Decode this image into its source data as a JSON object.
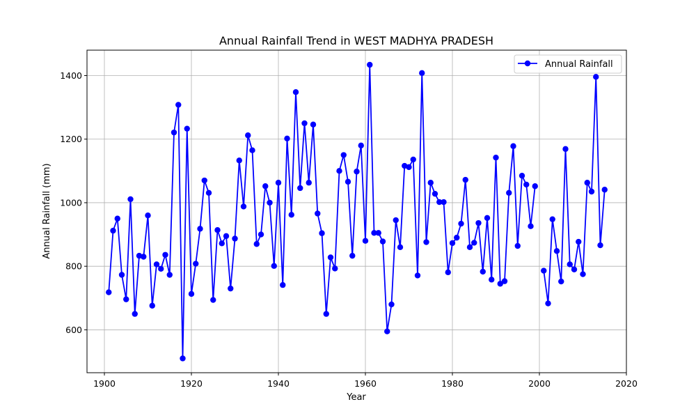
{
  "chart_data": {
    "type": "line",
    "title": "Annual Rainfall Trend in WEST MADHYA PRADESH",
    "xlabel": "Year",
    "ylabel": "Annual Rainfall (mm)",
    "xlim": [
      1896,
      2020
    ],
    "ylim": [
      465,
      1480
    ],
    "xticks": [
      1900,
      1920,
      1940,
      1960,
      1980,
      2000,
      2020
    ],
    "yticks": [
      600,
      800,
      1000,
      1200,
      1400
    ],
    "grid": true,
    "legend_position": "top-right",
    "series": [
      {
        "name": "Annual Rainfall",
        "color": "#0000ff",
        "marker": "circle",
        "segments": [
          {
            "x": [
              1901,
              1902,
              1903,
              1904,
              1905,
              1906,
              1907,
              1908,
              1909,
              1910,
              1911,
              1912,
              1913,
              1914,
              1915,
              1916,
              1917,
              1918,
              1919,
              1920,
              1921,
              1922,
              1923,
              1924,
              1925,
              1926,
              1927,
              1928,
              1929,
              1930,
              1931,
              1932,
              1933,
              1934,
              1935,
              1936,
              1937,
              1938,
              1939,
              1940,
              1941,
              1942,
              1943,
              1944,
              1945,
              1946,
              1947,
              1948,
              1949,
              1950,
              1951,
              1952,
              1953,
              1954,
              1955,
              1956,
              1957,
              1958,
              1959,
              1960,
              1961,
              1962,
              1963,
              1964,
              1965,
              1966,
              1967,
              1968,
              1969,
              1970,
              1971,
              1972,
              1973,
              1974,
              1975,
              1976,
              1977,
              1978,
              1979,
              1980,
              1981,
              1982,
              1983,
              1984,
              1985,
              1986,
              1987,
              1988,
              1989,
              1990,
              1991,
              1992,
              1993,
              1994,
              1995,
              1996,
              1997,
              1998,
              1999
            ],
            "y": [
              718,
              912,
              950,
              773,
              696,
              1011,
              650,
              833,
              830,
              960,
              676,
              806,
              792,
              836,
              773,
              1221,
              1308,
              510,
              1233,
              713,
              808,
              918,
              1070,
              1031,
              694,
              914,
              872,
              895,
              730,
              887,
              1133,
              988,
              1212,
              1165,
              870,
              900,
              1052,
              1000,
              801,
              1063,
              741,
              1202,
              962,
              1348,
              1046,
              1250,
              1063,
              1246,
              966,
              904,
              650,
              828,
              793,
              1100,
              1150,
              1066,
              833,
              1098,
              1180,
              880,
              1434,
              905,
              905,
              878,
              595,
              680,
              945,
              860,
              1116,
              1112,
              1136,
              771,
              1408,
              876,
              1063,
              1028,
              1002,
              1002,
              781,
              873,
              890,
              934,
              1072,
              860,
              874,
              936,
              783,
              952,
              758,
              1142,
              745,
              753,
              1031,
              1178,
              864,
              1085,
              1057,
              926,
              1052
            ]
          },
          {
            "x": [
              2001,
              2002,
              2003,
              2004,
              2005,
              2006,
              2007,
              2008,
              2009,
              2010,
              2011,
              2012,
              2013,
              2014,
              2015
            ],
            "y": [
              786,
              683,
              948,
              848,
              752,
              1169,
              806,
              790,
              877,
              775,
              1063,
              1035,
              1396,
              866,
              1041
            ]
          }
        ]
      }
    ]
  }
}
